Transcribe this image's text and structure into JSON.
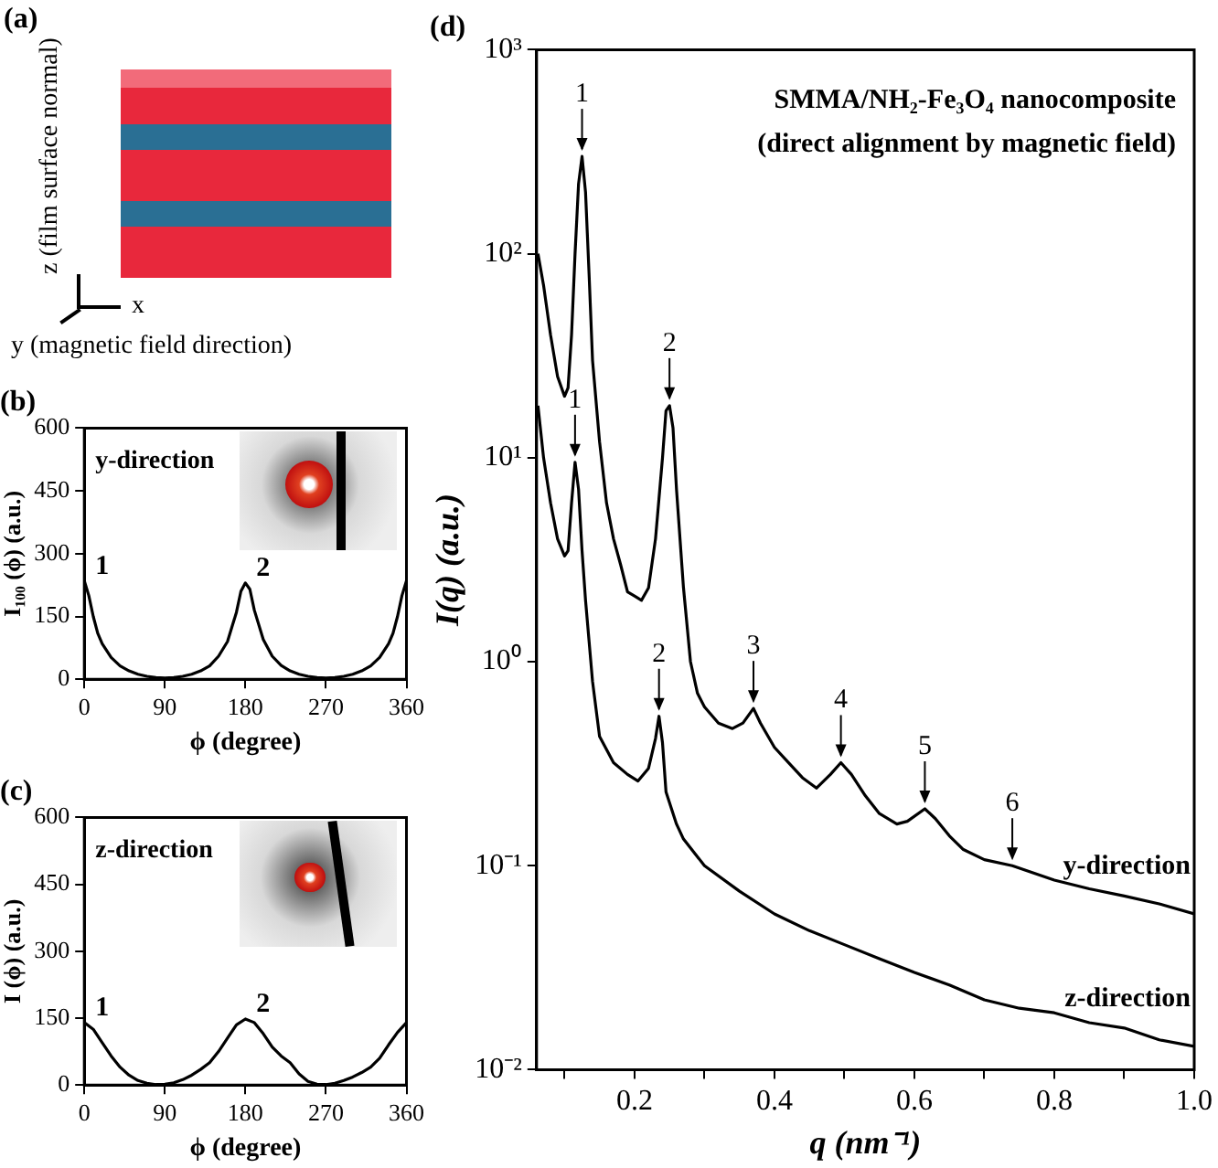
{
  "chart_data": [
    {
      "type": "other",
      "title": "(a)",
      "annotations": [
        "z (film surface normal)",
        "x",
        "y (magnetic field direction)"
      ]
    },
    {
      "type": "line",
      "title": "(b)",
      "xlabel": "ϕ (degree)",
      "ylabel": "I₁₀₀ (ϕ) (a.u.)",
      "xlim": [
        0,
        360
      ],
      "ylim": [
        0,
        600
      ],
      "xticks": [
        0,
        90,
        180,
        270,
        360
      ],
      "yticks": [
        0,
        150,
        300,
        450,
        600
      ],
      "grid": false,
      "legend": false,
      "marker": "none",
      "line_style": "solid",
      "x": [
        0,
        5,
        10,
        15,
        20,
        30,
        40,
        50,
        60,
        70,
        80,
        90,
        100,
        110,
        120,
        130,
        140,
        150,
        160,
        170,
        175,
        180,
        185,
        190,
        200,
        210,
        220,
        230,
        240,
        250,
        260,
        270,
        280,
        290,
        300,
        310,
        320,
        330,
        340,
        345,
        350,
        355,
        360
      ],
      "series": [
        {
          "color": "#000000",
          "values": [
            235,
            200,
            150,
            110,
            85,
            52,
            32,
            20,
            12,
            7,
            4,
            3,
            4,
            7,
            12,
            20,
            32,
            55,
            90,
            160,
            210,
            230,
            215,
            165,
            95,
            55,
            33,
            20,
            12,
            7,
            4,
            3,
            4,
            7,
            12,
            20,
            32,
            52,
            85,
            110,
            150,
            200,
            235
          ]
        }
      ],
      "annotations": [
        "y-direction",
        {
          "text": "1",
          "x": 0,
          "y": 235
        },
        {
          "text": "2",
          "x": 180,
          "y": 230
        }
      ]
    },
    {
      "type": "line",
      "title": "(c)",
      "xlabel": "ϕ (degree)",
      "ylabel": "I (ϕ) (a.u.)",
      "xlim": [
        0,
        360
      ],
      "ylim": [
        0,
        600
      ],
      "xticks": [
        0,
        90,
        180,
        270,
        360
      ],
      "yticks": [
        0,
        150,
        300,
        450,
        600
      ],
      "grid": false,
      "legend": false,
      "marker": "none",
      "line_style": "solid",
      "x": [
        0,
        10,
        20,
        30,
        40,
        50,
        60,
        70,
        80,
        90,
        100,
        110,
        120,
        130,
        140,
        150,
        160,
        170,
        180,
        190,
        200,
        210,
        220,
        230,
        240,
        250,
        260,
        270,
        280,
        290,
        300,
        310,
        320,
        330,
        340,
        350,
        360
      ],
      "series": [
        {
          "color": "#000000",
          "values": [
            140,
            125,
            95,
            65,
            40,
            22,
            10,
            4,
            1,
            2,
            5,
            12,
            22,
            35,
            50,
            75,
            105,
            135,
            148,
            140,
            115,
            85,
            65,
            50,
            25,
            8,
            2,
            1,
            4,
            10,
            18,
            28,
            40,
            60,
            90,
            118,
            140
          ]
        }
      ],
      "annotations": [
        "z-direction",
        {
          "text": "1",
          "x": 0,
          "y": 140
        },
        {
          "text": "2",
          "x": 180,
          "y": 148
        }
      ]
    },
    {
      "type": "line",
      "title": "(d)",
      "xlabel": "q (nm⁻¹)",
      "ylabel": "I(q) (a.u.)",
      "xlim": [
        0.06,
        1.0
      ],
      "ylim": [
        0.01,
        1000
      ],
      "log": "y",
      "grid": false,
      "legend": "right",
      "marker": "none",
      "line_style": "solid",
      "xticks": [
        {
          "value": 0.1,
          "label": null
        },
        0.2,
        {
          "value": 0.3,
          "label": null
        },
        0.4,
        {
          "value": 0.5,
          "label": null
        },
        0.6,
        {
          "value": 0.7,
          "label": null
        },
        0.8,
        {
          "value": 0.9,
          "label": null
        },
        {
          "value": 1.0,
          "label": "1.0"
        }
      ],
      "yticks": [
        {
          "value": 0.01,
          "label": "10⁻²"
        },
        {
          "value": 0.1,
          "label": "10⁻¹"
        },
        {
          "value": 1,
          "label": "10⁰"
        },
        {
          "value": 10,
          "label": "10¹"
        },
        {
          "value": 100,
          "label": "10²"
        },
        {
          "value": 1000,
          "label": "10³"
        }
      ],
      "series": [
        {
          "name": "y-direction",
          "color": "#000000",
          "x": [
            0.062,
            0.07,
            0.08,
            0.09,
            0.1,
            0.105,
            0.11,
            0.115,
            0.12,
            0.125,
            0.13,
            0.135,
            0.14,
            0.15,
            0.16,
            0.17,
            0.18,
            0.19,
            0.2,
            0.21,
            0.22,
            0.23,
            0.24,
            0.245,
            0.25,
            0.255,
            0.26,
            0.27,
            0.28,
            0.29,
            0.3,
            0.32,
            0.34,
            0.355,
            0.37,
            0.38,
            0.4,
            0.42,
            0.44,
            0.46,
            0.48,
            0.495,
            0.51,
            0.53,
            0.55,
            0.575,
            0.59,
            0.615,
            0.63,
            0.65,
            0.67,
            0.7,
            0.74,
            0.8,
            0.85,
            0.9,
            0.95,
            1.0
          ],
          "values": [
            100,
            70,
            40,
            25,
            20,
            22,
            40,
            100,
            220,
            300,
            200,
            80,
            30,
            12,
            6,
            4,
            3,
            2.2,
            2.1,
            2,
            2.3,
            4,
            10,
            17,
            18,
            14,
            7,
            2.3,
            1.0,
            0.7,
            0.6,
            0.5,
            0.47,
            0.5,
            0.59,
            0.5,
            0.38,
            0.32,
            0.27,
            0.24,
            0.28,
            0.32,
            0.28,
            0.22,
            0.18,
            0.16,
            0.165,
            0.19,
            0.17,
            0.14,
            0.12,
            0.107,
            0.1,
            0.085,
            0.077,
            0.071,
            0.065,
            0.058
          ]
        },
        {
          "name": "z-direction",
          "color": "#000000",
          "x": [
            0.062,
            0.07,
            0.08,
            0.09,
            0.1,
            0.105,
            0.11,
            0.115,
            0.12,
            0.125,
            0.13,
            0.14,
            0.15,
            0.17,
            0.19,
            0.205,
            0.22,
            0.23,
            0.235,
            0.24,
            0.245,
            0.26,
            0.27,
            0.3,
            0.35,
            0.4,
            0.45,
            0.5,
            0.55,
            0.6,
            0.65,
            0.7,
            0.75,
            0.8,
            0.85,
            0.9,
            0.95,
            1.0
          ],
          "values": [
            18,
            10,
            6,
            4,
            3.3,
            3.5,
            6,
            9.5,
            7,
            3.5,
            2,
            0.8,
            0.43,
            0.32,
            0.28,
            0.26,
            0.3,
            0.42,
            0.54,
            0.4,
            0.23,
            0.16,
            0.135,
            0.1,
            0.075,
            0.058,
            0.048,
            0.041,
            0.035,
            0.03,
            0.026,
            0.022,
            0.02,
            0.019,
            0.017,
            0.016,
            0.014,
            0.013
          ]
        }
      ],
      "annotations": [
        "SMMA/NH₂-Fe₃O₄ nanocomposite",
        "(direct alignment by magnetic field)",
        {
          "text": "1",
          "x": 0.125,
          "y": 300
        },
        {
          "text": "2",
          "x": 0.25,
          "y": 18
        },
        {
          "text": "3",
          "x": 0.37,
          "y": 0.59
        },
        {
          "text": "4",
          "x": 0.495,
          "y": 0.32
        },
        {
          "text": "5",
          "x": 0.615,
          "y": 0.19
        },
        {
          "text": "6",
          "x": 0.74,
          "y": 0.1
        },
        {
          "text": "1",
          "x": 0.115,
          "y": 9.5
        },
        {
          "text": "2",
          "x": 0.235,
          "y": 0.54
        }
      ]
    }
  ]
}
